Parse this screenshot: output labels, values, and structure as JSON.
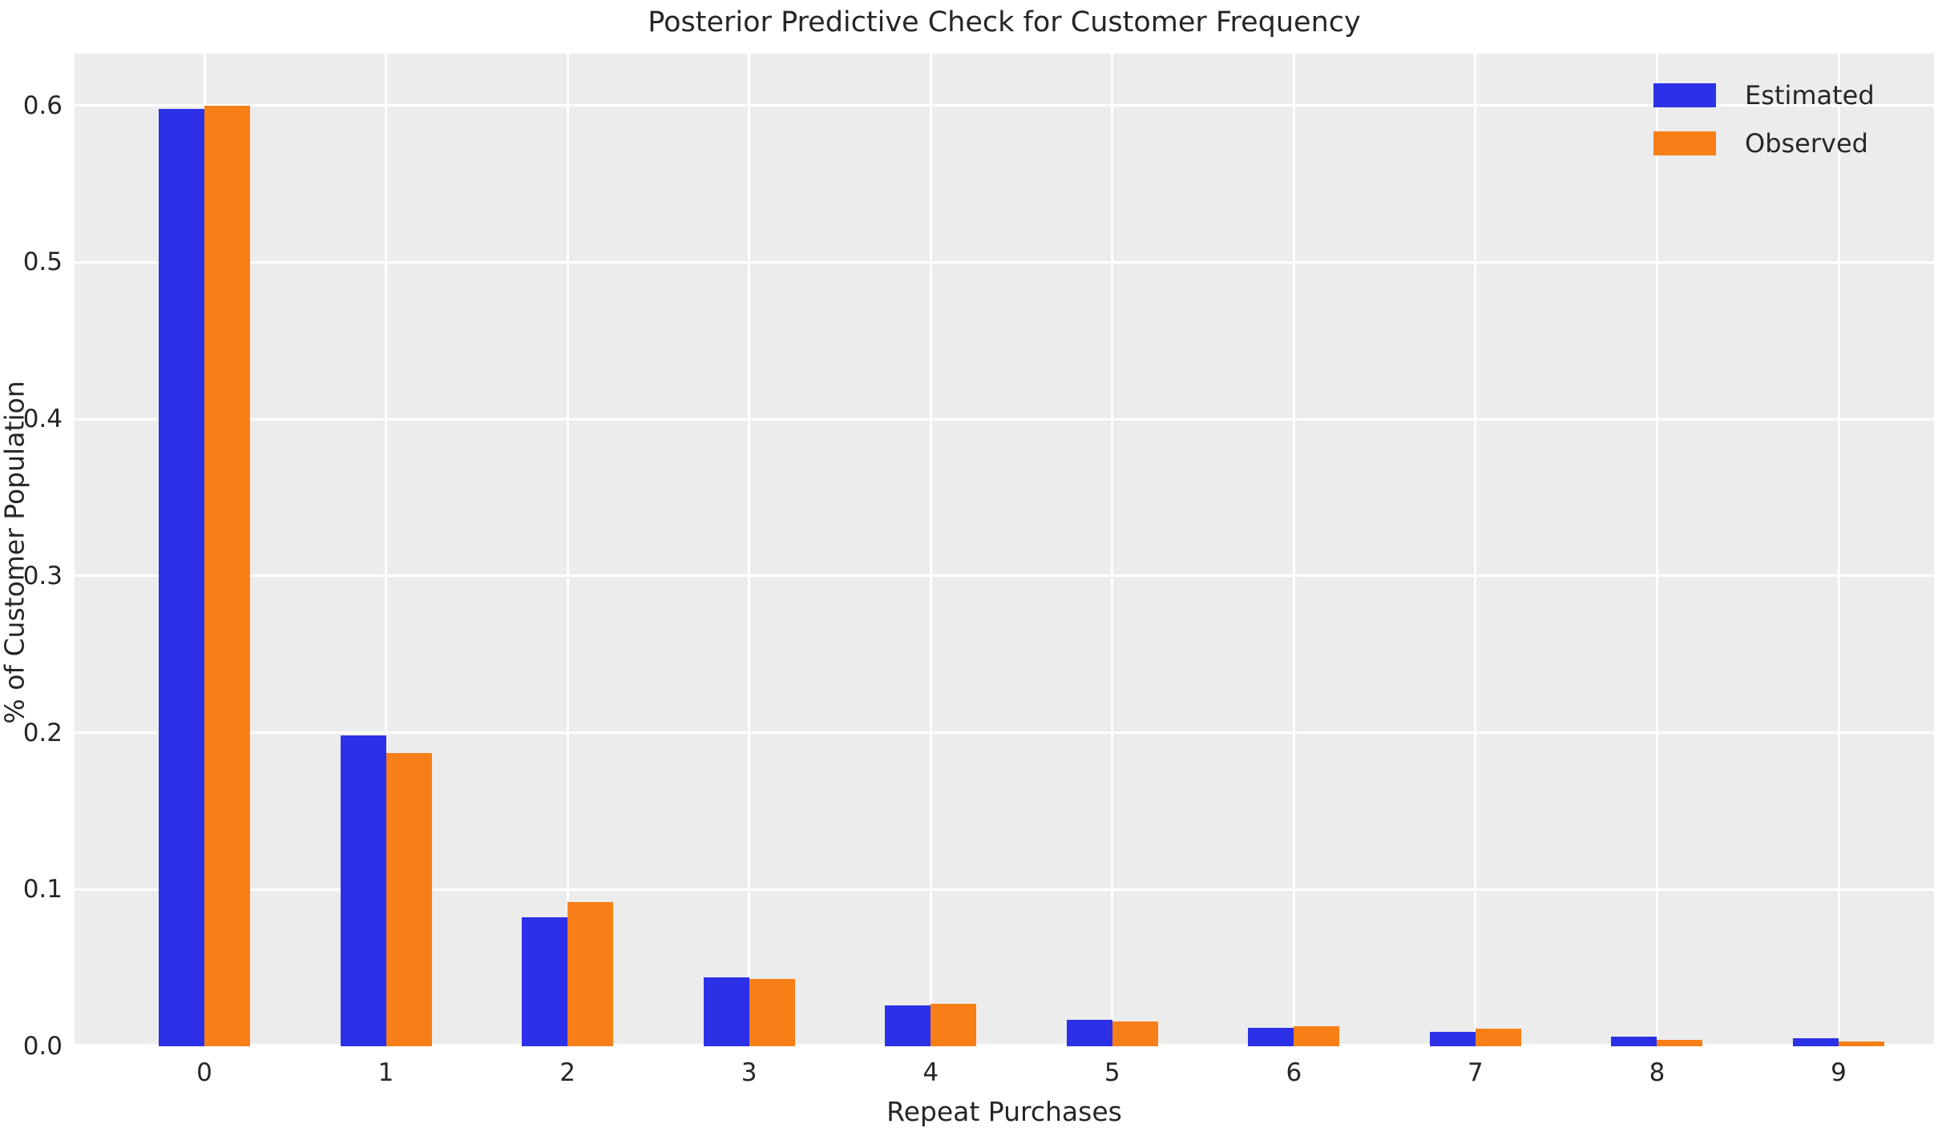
{
  "title": "Posterior Predictive Check for Customer Frequency",
  "chart_data": {
    "type": "bar",
    "title": "Posterior Predictive Check for Customer Frequency",
    "xlabel": "Repeat Purchases",
    "ylabel": "% of Customer Population",
    "categories": [
      "0",
      "1",
      "2",
      "3",
      "4",
      "5",
      "6",
      "7",
      "8",
      "9"
    ],
    "series": [
      {
        "name": "Estimated",
        "color": "#2c30e6",
        "values": [
          0.598,
          0.198,
          0.082,
          0.044,
          0.026,
          0.017,
          0.012,
          0.009,
          0.006,
          0.005
        ]
      },
      {
        "name": "Observed",
        "color": "#f87f17",
        "values": [
          0.6,
          0.187,
          0.092,
          0.043,
          0.027,
          0.016,
          0.013,
          0.011,
          0.004,
          0.003
        ]
      }
    ],
    "yticks": [
      0.0,
      0.1,
      0.2,
      0.3,
      0.4,
      0.5,
      0.6
    ],
    "ytick_labels": [
      "0.0",
      "0.1",
      "0.2",
      "0.3",
      "0.4",
      "0.5",
      "0.6"
    ],
    "ylim": [
      0,
      0.633
    ],
    "grid": true,
    "grid_color": "#ffffff",
    "plot_background": "#ececec",
    "legend_position": "upper right",
    "legend_frame": false,
    "text_color": "#262626"
  }
}
